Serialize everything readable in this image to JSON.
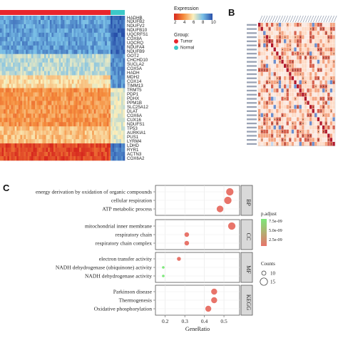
{
  "panels": {
    "a_letter": "",
    "b_letter": "B",
    "c_letter": "C"
  },
  "heatmap": {
    "genes": [
      "HADHB",
      "NDUFB2",
      "NDUFV2",
      "NDUFB10",
      "UQCRFS1",
      "COX8A",
      "UQCRQ",
      "NDUFA4",
      "NDUFB9",
      "GOT2",
      "CHCHD10",
      "SUCLA2",
      "COX5A",
      "HADH",
      "MDH2",
      "COX14",
      "TIMM13",
      "TRMT5",
      "PDP1",
      "PDHX",
      "PPM1B",
      "SLC25A12",
      "DLAT",
      "COX6A",
      "CUX16",
      "NDUFS1",
      "TP53",
      "AURKIA1",
      "PUS1",
      "LYRM4",
      "LDHD",
      "RYR1",
      "ACTN3",
      "COX6A2"
    ],
    "legend": {
      "title": "Expression",
      "ticks": [
        "2",
        "4",
        "6",
        "8",
        "10"
      ]
    },
    "group": {
      "title": "Group:",
      "items": [
        {
          "label": "Tumor",
          "color": "#e8262d"
        },
        {
          "label": "Normal",
          "color": "#3cc8c8"
        }
      ]
    }
  },
  "correlation": {
    "genes_count": 30
  },
  "enrichment": {
    "categories": [
      {
        "label": "BP",
        "terms": [
          {
            "term": "energy derivation by oxidation of organic compounds",
            "x": 0.53,
            "count": 15,
            "p": "2.5e-09"
          },
          {
            "term": "cellular respiration",
            "x": 0.52,
            "count": 15,
            "p": "2.5e-09"
          },
          {
            "term": "ATP metabolic process",
            "x": 0.48,
            "count": 14,
            "p": "2.5e-09"
          }
        ]
      },
      {
        "label": "CC",
        "terms": [
          {
            "term": "mitochondrial inner membrane",
            "x": 0.54,
            "count": 15,
            "p": "2.5e-09"
          },
          {
            "term": "respiratory chain",
            "x": 0.31,
            "count": 11,
            "p": "2.5e-09"
          },
          {
            "term": "respiratory chain complex",
            "x": 0.31,
            "count": 11,
            "p": "2.5e-09"
          }
        ]
      },
      {
        "label": "MF",
        "terms": [
          {
            "term": "electron transfer activity",
            "x": 0.27,
            "count": 10,
            "p": "2.5e-09"
          },
          {
            "term": "NADH dehydrogenase (ubiquinone) activity",
            "x": 0.19,
            "count": 8,
            "p": "7.5e-09"
          },
          {
            "term": "NADH dehydrogenase activity",
            "x": 0.19,
            "count": 8,
            "p": "7.5e-09"
          }
        ]
      },
      {
        "label": "KEGG",
        "terms": [
          {
            "term": "Parkinson disease",
            "x": 0.45,
            "count": 13,
            "p": "2.5e-09"
          },
          {
            "term": "Thermogenesis",
            "x": 0.45,
            "count": 13,
            "p": "2.5e-09"
          },
          {
            "term": "Oxidative phosphorylation",
            "x": 0.42,
            "count": 13,
            "p": "2.5e-09"
          }
        ]
      }
    ],
    "xlabel": "GeneRatio",
    "xticks": [
      "0.2",
      "0.3",
      "0.4",
      "0.5"
    ],
    "padj": {
      "title": "p.adjust",
      "ticks": [
        "7.5e-09",
        "5.0e-09",
        "2.5e-09"
      ]
    },
    "counts": {
      "title": "Counts",
      "ticks": [
        "10",
        "15"
      ]
    },
    "colors": {
      "high_p": "#7de87a",
      "low_p": "#e8746a"
    }
  }
}
